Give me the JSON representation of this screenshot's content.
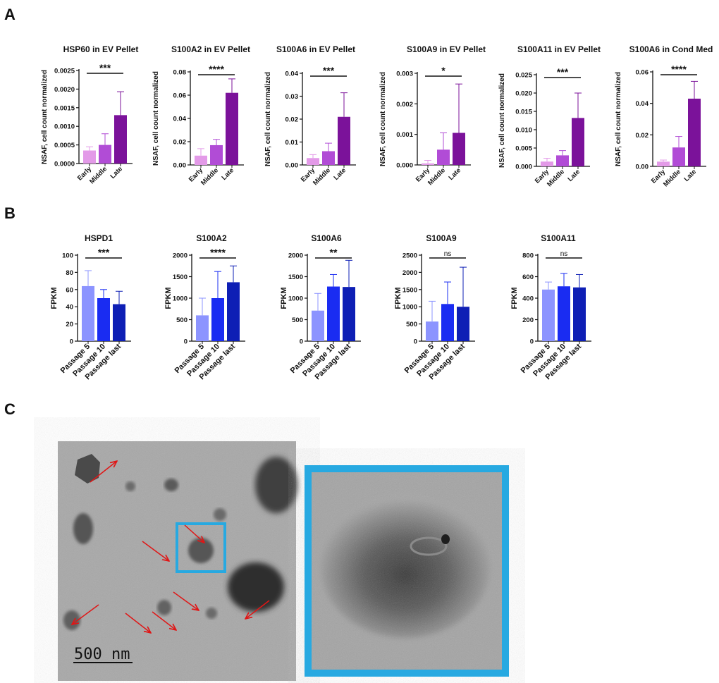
{
  "panels": {
    "a": "A",
    "b": "B",
    "c": "C"
  },
  "colors": {
    "early": "#e39ae8",
    "middle": "#b14cd6",
    "late": "#7b129a",
    "p5": "#8c94ff",
    "p10": "#1a2cf2",
    "plast": "#0e1fb5",
    "inset_border": "#27a9e1",
    "arrow": "#e01616"
  },
  "chart_data": [
    {
      "type": "bar",
      "title": "HSP60 in EV Pellet",
      "xlabel": "",
      "ylabel": "NSAF, cell count normalized",
      "categories": [
        "Early",
        "Middle",
        "Late"
      ],
      "values": [
        0.00035,
        0.0005,
        0.0013
      ],
      "errors": [
        0.0001,
        0.0003,
        0.00063
      ],
      "ylim": [
        0,
        0.0025
      ],
      "yticks": [
        "0.0000",
        "0.0005",
        "0.0010",
        "0.0015",
        "0.0020",
        "0.0025"
      ],
      "significance": "***"
    },
    {
      "type": "bar",
      "title": "S100A2 in EV Pellet",
      "xlabel": "",
      "ylabel": "NSAF, cell count normalized",
      "categories": [
        "Early",
        "Middle",
        "Late"
      ],
      "values": [
        0.008,
        0.017,
        0.062
      ],
      "errors": [
        0.006,
        0.005,
        0.012
      ],
      "ylim": [
        0,
        0.08
      ],
      "yticks": [
        "0.00",
        "0.02",
        "0.04",
        "0.06",
        "0.08"
      ],
      "significance": "****"
    },
    {
      "type": "bar",
      "title": "S100A6 in EV Pellet",
      "xlabel": "",
      "ylabel": "NSAF, cell count normalized",
      "categories": [
        "Early",
        "Middle",
        "Late"
      ],
      "values": [
        0.003,
        0.006,
        0.021
      ],
      "errors": [
        0.0015,
        0.0035,
        0.0105
      ],
      "ylim": [
        0,
        0.04
      ],
      "yticks": [
        "0.00",
        "0.01",
        "0.02",
        "0.03",
        "0.04"
      ],
      "significance": "***"
    },
    {
      "type": "bar",
      "title": "S100A9 in EV Pellet",
      "xlabel": "",
      "ylabel": "NSAF, cell count normalized",
      "categories": [
        "Early",
        "Middle",
        "Late"
      ],
      "values": [
        5e-05,
        0.0005,
        0.00105
      ],
      "errors": [
        0.0001,
        0.00055,
        0.0016
      ],
      "ylim": [
        0,
        0.003
      ],
      "yticks": [
        "0.000",
        "0.001",
        "0.002",
        "0.003"
      ],
      "significance": "*"
    },
    {
      "type": "bar",
      "title": "S100A11 in EV Pellet",
      "xlabel": "",
      "ylabel": "NSAF, cell count normalized",
      "categories": [
        "Early",
        "Middle",
        "Late"
      ],
      "values": [
        0.0013,
        0.003,
        0.0132
      ],
      "errors": [
        0.0009,
        0.0013,
        0.0068
      ],
      "ylim": [
        0,
        0.025
      ],
      "yticks": [
        "0.000",
        "0.005",
        "0.010",
        "0.015",
        "0.020",
        "0.025"
      ],
      "significance": "***"
    },
    {
      "type": "bar",
      "title": "S100A6 in Cond Med",
      "xlabel": "",
      "ylabel": "NSAF, cell count normalized",
      "categories": [
        "Early",
        "Middle",
        "Late"
      ],
      "values": [
        0.003,
        0.012,
        0.043
      ],
      "errors": [
        0.001,
        0.007,
        0.011
      ],
      "ylim": [
        0,
        0.06
      ],
      "yticks": [
        "0.00",
        "0.02",
        "0.04",
        "0.06"
      ],
      "significance": "****"
    },
    {
      "type": "bar",
      "title": "HSPD1",
      "xlabel": "",
      "ylabel": "FPKM",
      "categories": [
        "Passage 5",
        "Passage 10",
        "Passage last"
      ],
      "values": [
        64,
        50,
        43
      ],
      "errors": [
        18,
        10,
        15
      ],
      "ylim": [
        0,
        100
      ],
      "yticks": [
        "0",
        "20",
        "40",
        "60",
        "80",
        "100"
      ],
      "significance": "***"
    },
    {
      "type": "bar",
      "title": "S100A2",
      "xlabel": "",
      "ylabel": "FPKM",
      "categories": [
        "Passage 5",
        "Passage 10",
        "Passage last"
      ],
      "values": [
        600,
        1000,
        1370
      ],
      "errors": [
        400,
        620,
        380
      ],
      "ylim": [
        0,
        2000
      ],
      "yticks": [
        "0",
        "500",
        "1000",
        "1500",
        "2000"
      ],
      "significance": "****"
    },
    {
      "type": "bar",
      "title": "S100A6",
      "xlabel": "",
      "ylabel": "FPKM",
      "categories": [
        "Passage 5",
        "Passage 10",
        "Passage last"
      ],
      "values": [
        710,
        1270,
        1260
      ],
      "errors": [
        400,
        280,
        620
      ],
      "ylim": [
        0,
        2000
      ],
      "yticks": [
        "0",
        "500",
        "1000",
        "1500",
        "2000"
      ],
      "significance": "**"
    },
    {
      "type": "bar",
      "title": "S100A9",
      "xlabel": "",
      "ylabel": "FPKM",
      "categories": [
        "Passage 5",
        "Passage 10",
        "Passage last"
      ],
      "values": [
        570,
        1080,
        1000
      ],
      "errors": [
        590,
        640,
        1150
      ],
      "ylim": [
        0,
        2500
      ],
      "yticks": [
        "0",
        "500",
        "1000",
        "1500",
        "2000",
        "2500"
      ],
      "significance": "ns"
    },
    {
      "type": "bar",
      "title": "S100A11",
      "xlabel": "",
      "ylabel": "FPKM",
      "categories": [
        "Passage 5",
        "Passage 10",
        "Passage last"
      ],
      "values": [
        480,
        510,
        500
      ],
      "errors": [
        70,
        120,
        120
      ],
      "ylim": [
        0,
        800
      ],
      "yticks": [
        "0",
        "200",
        "400",
        "600",
        "800"
      ],
      "significance": "ns"
    }
  ],
  "micrograph": {
    "scale_label": "500 nm"
  }
}
